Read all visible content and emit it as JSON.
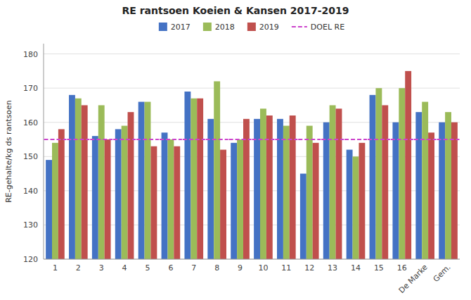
{
  "chart_data": {
    "type": "bar",
    "title": "RE rantsoen Koeien & Kansen 2017-2019",
    "ylabel": "RE-gehalte/kg ds rantsoen",
    "categories": [
      "1",
      "2",
      "3",
      "4",
      "5",
      "6",
      "7",
      "8",
      "9",
      "10",
      "11",
      "12",
      "13",
      "14",
      "15",
      "16",
      "De Marke",
      "Gem."
    ],
    "series": [
      {
        "name": "2017",
        "color": "#4472C4",
        "values": [
          149,
          168,
          156,
          158,
          166,
          157,
          169,
          161,
          154,
          161,
          161,
          145,
          160,
          152,
          168,
          160,
          163,
          160
        ]
      },
      {
        "name": "2018",
        "color": "#9BBB59",
        "values": [
          154,
          167,
          165,
          159,
          166,
          155,
          167,
          172,
          155,
          164,
          159,
          159,
          165,
          150,
          170,
          170,
          166,
          163
        ]
      },
      {
        "name": "2019",
        "color": "#C0504D",
        "values": [
          158,
          165,
          155,
          163,
          153,
          153,
          167,
          152,
          161,
          162,
          162,
          154,
          164,
          154,
          165,
          175,
          157,
          160
        ]
      },
      {
        "name": "DOEL RE",
        "type": "line",
        "color": "#CC44CC",
        "line_style": "dashed",
        "values": [
          155,
          155,
          155,
          155,
          155,
          155,
          155,
          155,
          155,
          155,
          155,
          155,
          155,
          155,
          155,
          155,
          155,
          155
        ]
      }
    ],
    "ylim": [
      120,
      183
    ],
    "yticks": [
      120,
      130,
      140,
      150,
      160,
      170,
      180
    ],
    "grid": true,
    "legend": "top"
  }
}
